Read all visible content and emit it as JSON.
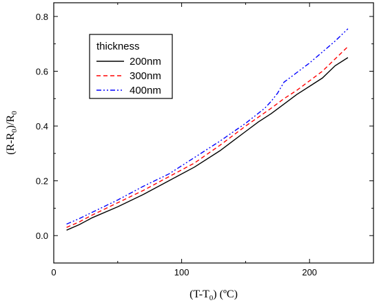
{
  "chart_data": {
    "type": "line",
    "title": "",
    "xlabel": "(T-T0) (ºC)",
    "ylabel": "(R-R0)/R0",
    "xlim": [
      0,
      250
    ],
    "ylim": [
      -0.1,
      0.85
    ],
    "xticks": [
      0,
      100,
      200
    ],
    "yticks": [
      0.0,
      0.2,
      0.4,
      0.6,
      0.8
    ],
    "grid": false,
    "legend": {
      "title": "thickness",
      "position": "top-left"
    },
    "series": [
      {
        "name": "200nm",
        "color": "#000000",
        "dash": "solid",
        "x": [
          10,
          20,
          30,
          50,
          70,
          90,
          110,
          130,
          140,
          150,
          160,
          170,
          180,
          190,
          200,
          210,
          220,
          230
        ],
        "y": [
          0.02,
          0.04,
          0.065,
          0.105,
          0.15,
          0.2,
          0.25,
          0.31,
          0.345,
          0.38,
          0.415,
          0.445,
          0.48,
          0.515,
          0.545,
          0.575,
          0.62,
          0.65
        ]
      },
      {
        "name": "300nm",
        "color": "#ff0000",
        "dash": "dashed",
        "x": [
          10,
          20,
          30,
          50,
          70,
          90,
          110,
          130,
          150,
          170,
          180,
          190,
          200,
          210,
          220,
          230
        ],
        "y": [
          0.03,
          0.05,
          0.075,
          0.12,
          0.165,
          0.215,
          0.265,
          0.33,
          0.4,
          0.465,
          0.5,
          0.53,
          0.565,
          0.6,
          0.645,
          0.69
        ]
      },
      {
        "name": "400nm",
        "color": "#0000ff",
        "dash": "dash-dot-dot",
        "x": [
          10,
          20,
          30,
          50,
          70,
          90,
          110,
          130,
          150,
          165,
          170,
          175,
          180,
          190,
          200,
          210,
          220,
          230
        ],
        "y": [
          0.042,
          0.062,
          0.085,
          0.13,
          0.18,
          0.225,
          0.285,
          0.345,
          0.41,
          0.465,
          0.49,
          0.52,
          0.56,
          0.595,
          0.63,
          0.67,
          0.71,
          0.755
        ]
      }
    ]
  }
}
